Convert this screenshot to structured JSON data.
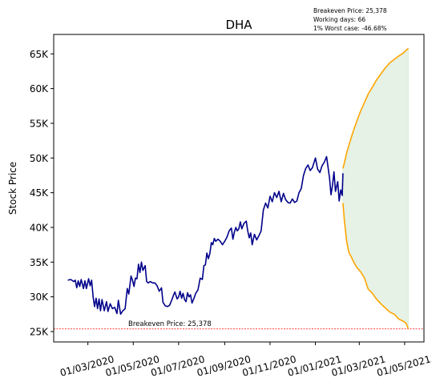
{
  "chart_data": {
    "type": "line",
    "title": "DHA",
    "ylabel": "Stock Price",
    "xlabel": "",
    "ylim": [
      23500,
      67800
    ],
    "xlim": [
      "2020-01-15",
      "2021-05-27"
    ],
    "y_ticks": [
      25000,
      30000,
      35000,
      40000,
      45000,
      50000,
      55000,
      60000,
      65000
    ],
    "y_tick_labels": [
      "25K",
      "30K",
      "35K",
      "40K",
      "45K",
      "50K",
      "55K",
      "60K",
      "65K"
    ],
    "x_ticks": [
      "2020-03-01",
      "2020-05-01",
      "2020-07-01",
      "2020-09-01",
      "2020-11-01",
      "2021-01-01",
      "2021-03-01",
      "2021-05-01"
    ],
    "x_tick_labels": [
      "01/03/2020",
      "01/05/2020",
      "01/07/2020",
      "01/09/2020",
      "01/11/2020",
      "01/01/2021",
      "01/03/2021",
      "01/05/2021"
    ],
    "grid": false,
    "info_lines": [
      "Breakeven Price: 25,378",
      "Working days: 66",
      "1% Worst case: -46.68%"
    ],
    "breakeven": {
      "value": 25378,
      "label": "Breakeven Price: 25,378",
      "color": "#ff0000"
    },
    "series": [
      {
        "color": "#00008b",
        "points": [
          [
            "2020-02-03",
            32400
          ],
          [
            "2020-02-07",
            32500
          ],
          [
            "2020-02-11",
            32200
          ],
          [
            "2020-02-13",
            32400
          ],
          [
            "2020-02-15",
            31300
          ],
          [
            "2020-02-17",
            32300
          ],
          [
            "2020-02-19",
            31500
          ],
          [
            "2020-02-21",
            32500
          ],
          [
            "2020-02-24",
            31200
          ],
          [
            "2020-02-26",
            32300
          ],
          [
            "2020-02-28",
            31200
          ],
          [
            "2020-03-02",
            32600
          ],
          [
            "2020-03-04",
            31600
          ],
          [
            "2020-03-06",
            32400
          ],
          [
            "2020-03-08",
            30000
          ],
          [
            "2020-03-10",
            28600
          ],
          [
            "2020-03-12",
            29800
          ],
          [
            "2020-03-14",
            28300
          ],
          [
            "2020-03-16",
            29700
          ],
          [
            "2020-03-18",
            28000
          ],
          [
            "2020-03-20",
            29600
          ],
          [
            "2020-03-23",
            28000
          ],
          [
            "2020-03-26",
            29300
          ],
          [
            "2020-03-28",
            27900
          ],
          [
            "2020-03-31",
            29000
          ],
          [
            "2020-04-03",
            28300
          ],
          [
            "2020-04-06",
            28500
          ],
          [
            "2020-04-09",
            27600
          ],
          [
            "2020-04-11",
            29500
          ],
          [
            "2020-04-14",
            27500
          ],
          [
            "2020-04-17",
            28000
          ],
          [
            "2020-04-20",
            28300
          ],
          [
            "2020-04-23",
            31200
          ],
          [
            "2020-04-25",
            30400
          ],
          [
            "2020-04-28",
            33000
          ],
          [
            "2020-04-30",
            32400
          ],
          [
            "2020-05-02",
            31500
          ],
          [
            "2020-05-04",
            32700
          ],
          [
            "2020-05-06",
            32600
          ],
          [
            "2020-05-08",
            34700
          ],
          [
            "2020-05-10",
            33500
          ],
          [
            "2020-05-12",
            35000
          ],
          [
            "2020-05-14",
            33800
          ],
          [
            "2020-05-17",
            34500
          ],
          [
            "2020-05-19",
            32200
          ],
          [
            "2020-05-21",
            32000
          ],
          [
            "2020-05-24",
            32200
          ],
          [
            "2020-05-27",
            32000
          ],
          [
            "2020-05-30",
            32000
          ],
          [
            "2020-06-02",
            31600
          ],
          [
            "2020-06-05",
            30800
          ],
          [
            "2020-06-08",
            31300
          ],
          [
            "2020-06-10",
            29200
          ],
          [
            "2020-06-13",
            28700
          ],
          [
            "2020-06-16",
            28600
          ],
          [
            "2020-06-19",
            28800
          ],
          [
            "2020-06-22",
            29600
          ],
          [
            "2020-06-24",
            30200
          ],
          [
            "2020-06-26",
            30700
          ],
          [
            "2020-06-29",
            29700
          ],
          [
            "2020-07-01",
            30000
          ],
          [
            "2020-07-03",
            30800
          ],
          [
            "2020-07-05",
            29800
          ],
          [
            "2020-07-07",
            30500
          ],
          [
            "2020-07-09",
            29600
          ],
          [
            "2020-07-11",
            29300
          ],
          [
            "2020-07-13",
            30600
          ],
          [
            "2020-07-15",
            30000
          ],
          [
            "2020-07-17",
            30300
          ],
          [
            "2020-07-19",
            29100
          ],
          [
            "2020-07-21",
            29600
          ],
          [
            "2020-07-24",
            30500
          ],
          [
            "2020-07-27",
            31000
          ],
          [
            "2020-07-30",
            32700
          ],
          [
            "2020-08-02",
            32500
          ],
          [
            "2020-08-04",
            34500
          ],
          [
            "2020-08-06",
            34600
          ],
          [
            "2020-08-08",
            36300
          ],
          [
            "2020-08-10",
            35500
          ],
          [
            "2020-08-12",
            36200
          ],
          [
            "2020-08-14",
            37800
          ],
          [
            "2020-08-16",
            37500
          ],
          [
            "2020-08-18",
            38400
          ],
          [
            "2020-08-20",
            38000
          ],
          [
            "2020-08-23",
            38300
          ],
          [
            "2020-08-26",
            38000
          ],
          [
            "2020-08-29",
            37500
          ],
          [
            "2020-09-01",
            38000
          ],
          [
            "2020-09-04",
            38600
          ],
          [
            "2020-09-07",
            39500
          ],
          [
            "2020-09-10",
            39900
          ],
          [
            "2020-09-12",
            38300
          ],
          [
            "2020-09-14",
            39300
          ],
          [
            "2020-09-16",
            40000
          ],
          [
            "2020-09-18",
            39500
          ],
          [
            "2020-09-20",
            39800
          ],
          [
            "2020-09-22",
            40800
          ],
          [
            "2020-09-24",
            39800
          ],
          [
            "2020-09-27",
            40600
          ],
          [
            "2020-09-30",
            40900
          ],
          [
            "2020-10-02",
            39500
          ],
          [
            "2020-10-04",
            38500
          ],
          [
            "2020-10-06",
            39200
          ],
          [
            "2020-10-08",
            37500
          ],
          [
            "2020-10-11",
            39000
          ],
          [
            "2020-10-14",
            38200
          ],
          [
            "2020-10-17",
            38800
          ],
          [
            "2020-10-20",
            39500
          ],
          [
            "2020-10-23",
            42500
          ],
          [
            "2020-10-26",
            43500
          ],
          [
            "2020-10-29",
            42800
          ],
          [
            "2020-11-01",
            44500
          ],
          [
            "2020-11-04",
            43700
          ],
          [
            "2020-11-07",
            45000
          ],
          [
            "2020-11-10",
            44300
          ],
          [
            "2020-11-13",
            45200
          ],
          [
            "2020-11-16",
            43700
          ],
          [
            "2020-11-19",
            44900
          ],
          [
            "2020-11-22",
            44000
          ],
          [
            "2020-11-25",
            43600
          ],
          [
            "2020-11-28",
            43500
          ],
          [
            "2020-12-01",
            44100
          ],
          [
            "2020-12-04",
            43600
          ],
          [
            "2020-12-07",
            43800
          ],
          [
            "2020-12-10",
            45000
          ],
          [
            "2020-12-13",
            45600
          ],
          [
            "2020-12-16",
            47500
          ],
          [
            "2020-12-19",
            48500
          ],
          [
            "2020-12-22",
            49000
          ],
          [
            "2020-12-25",
            48200
          ],
          [
            "2020-12-28",
            48600
          ],
          [
            "2021-01-01",
            50000
          ],
          [
            "2021-01-04",
            48400
          ],
          [
            "2021-01-07",
            47900
          ],
          [
            "2021-01-10",
            48900
          ],
          [
            "2021-01-13",
            49400
          ],
          [
            "2021-01-16",
            50200
          ],
          [
            "2021-01-18",
            48700
          ],
          [
            "2021-01-20",
            47100
          ],
          [
            "2021-01-22",
            44700
          ],
          [
            "2021-01-24",
            46100
          ],
          [
            "2021-01-26",
            48000
          ],
          [
            "2021-01-28",
            45200
          ],
          [
            "2021-01-31",
            46600
          ],
          [
            "2021-02-02",
            43800
          ],
          [
            "2021-02-04",
            45400
          ],
          [
            "2021-02-06",
            44600
          ],
          [
            "2021-02-07",
            47800
          ]
        ]
      },
      {
        "color": "#ffa500",
        "points": [
          [
            "2021-02-07",
            48500
          ],
          [
            "2021-02-09",
            49300
          ],
          [
            "2021-02-12",
            50700
          ],
          [
            "2021-02-15",
            51800
          ],
          [
            "2021-02-18",
            52900
          ],
          [
            "2021-02-22",
            54200
          ],
          [
            "2021-02-26",
            55400
          ],
          [
            "2021-03-03",
            56800
          ],
          [
            "2021-03-08",
            58000
          ],
          [
            "2021-03-13",
            59200
          ],
          [
            "2021-03-18",
            60100
          ],
          [
            "2021-03-24",
            61200
          ],
          [
            "2021-03-30",
            62100
          ],
          [
            "2021-04-05",
            63000
          ],
          [
            "2021-04-11",
            63700
          ],
          [
            "2021-04-17",
            64200
          ],
          [
            "2021-04-23",
            64700
          ],
          [
            "2021-04-29",
            65100
          ],
          [
            "2021-05-03",
            65500
          ],
          [
            "2021-05-06",
            65800
          ]
        ]
      },
      {
        "color": "#ffa500",
        "points": [
          [
            "2021-02-07",
            43500
          ],
          [
            "2021-02-09",
            41000
          ],
          [
            "2021-02-12",
            38000
          ],
          [
            "2021-02-15",
            36400
          ],
          [
            "2021-02-18",
            35800
          ],
          [
            "2021-02-22",
            34900
          ],
          [
            "2021-02-26",
            34200
          ],
          [
            "2021-03-03",
            33600
          ],
          [
            "2021-03-08",
            32700
          ],
          [
            "2021-03-13",
            31100
          ],
          [
            "2021-03-18",
            30600
          ],
          [
            "2021-03-24",
            29700
          ],
          [
            "2021-03-30",
            29000
          ],
          [
            "2021-04-05",
            28400
          ],
          [
            "2021-04-11",
            27800
          ],
          [
            "2021-04-17",
            27500
          ],
          [
            "2021-04-23",
            26800
          ],
          [
            "2021-04-29",
            26500
          ],
          [
            "2021-05-03",
            26200
          ],
          [
            "2021-05-06",
            25378
          ]
        ]
      }
    ],
    "fill_color": "#e5f2e5"
  }
}
